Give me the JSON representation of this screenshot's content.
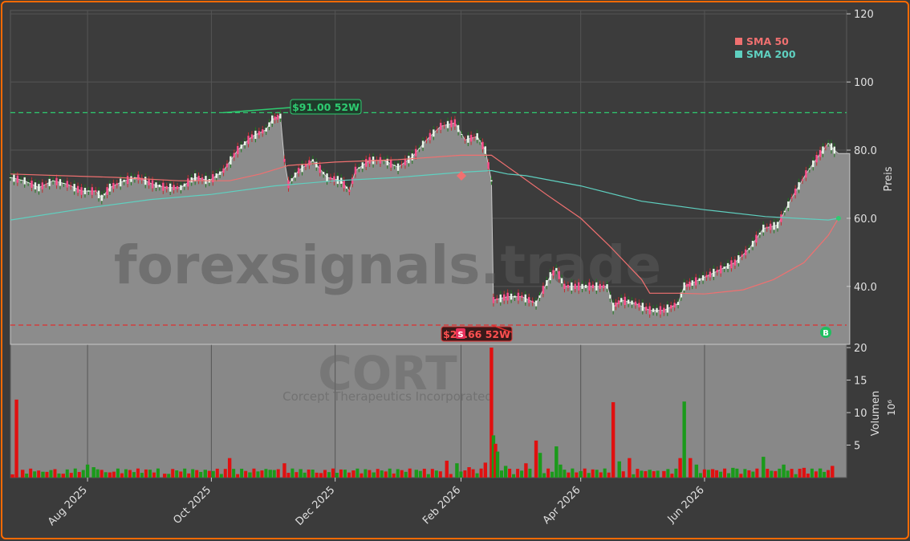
{
  "chart_data": {
    "type": "candlestick",
    "ticker_watermark": "CORT",
    "company_watermark": "Corcept Therapeutics Incorporated",
    "site_watermark": "forexsignals.trade",
    "price_axis_label": "Preis",
    "volume_axis_label": "Volumen",
    "volume_unit": "10⁶",
    "price_ticks": [
      "120",
      "100",
      "80.0",
      "60.0",
      "40.0"
    ],
    "price_tick_values": [
      120,
      100,
      80,
      60,
      40
    ],
    "volume_ticks": [
      "20",
      "15",
      "10",
      "5"
    ],
    "volume_tick_values": [
      20,
      15,
      10,
      5
    ],
    "x_ticks": [
      "Aug 2025",
      "Oct 2025",
      "Dec 2025",
      "Feb 2026",
      "Apr 2026",
      "Jun 2026"
    ],
    "x_tick_dates": [
      "2025-08-01",
      "2025-10-01",
      "2025-12-01",
      "2026-02-01",
      "2026-04-01",
      "2026-06-01"
    ],
    "date_range": [
      "2025-06-24",
      "2026-06-24"
    ],
    "price_ylim": [
      23,
      121
    ],
    "volume_ylim": [
      0,
      20.5
    ],
    "legend": [
      {
        "label": "SMA 50",
        "color": "#f07070"
      },
      {
        "label": "SMA 200",
        "color": "#5fd0c0"
      }
    ],
    "high_52w": {
      "label": "$91.00 52W",
      "value": 91.0,
      "date": "2025-10-06"
    },
    "low_52w": {
      "label": "$28.66 52W",
      "value": 28.66,
      "date": "2026-02-16"
    },
    "signals": [
      {
        "type": "S",
        "date": "2026-01-07",
        "value": 28.5
      },
      {
        "type": "B",
        "date": "2026-06-24",
        "value": 27.5
      }
    ],
    "close_series": [
      [
        "2025-06-24",
        72
      ],
      [
        "2025-07-01",
        71
      ],
      [
        "2025-07-08",
        69
      ],
      [
        "2025-07-15",
        71
      ],
      [
        "2025-07-22",
        70
      ],
      [
        "2025-07-29",
        68
      ],
      [
        "2025-08-05",
        68
      ],
      [
        "2025-08-08",
        66
      ],
      [
        "2025-08-12",
        69
      ],
      [
        "2025-08-19",
        71
      ],
      [
        "2025-08-26",
        72
      ],
      [
        "2025-09-02",
        70
      ],
      [
        "2025-09-09",
        69
      ],
      [
        "2025-09-16",
        69
      ],
      [
        "2025-09-23",
        72
      ],
      [
        "2025-09-30",
        71
      ],
      [
        "2025-10-07",
        74
      ],
      [
        "2025-10-14",
        80
      ],
      [
        "2025-10-21",
        84
      ],
      [
        "2025-10-28",
        86
      ],
      [
        "2025-10-31",
        89
      ],
      [
        "2025-11-04",
        90
      ],
      [
        "2025-11-06",
        77
      ],
      [
        "2025-11-08",
        70
      ],
      [
        "2025-11-13",
        74
      ],
      [
        "2025-11-20",
        77
      ],
      [
        "2025-11-27",
        72
      ],
      [
        "2025-12-04",
        71
      ],
      [
        "2025-12-08",
        68
      ],
      [
        "2025-12-11",
        74
      ],
      [
        "2025-12-18",
        77
      ],
      [
        "2025-12-25",
        77
      ],
      [
        "2026-01-01",
        75
      ],
      [
        "2026-01-08",
        78
      ],
      [
        "2026-01-15",
        83
      ],
      [
        "2026-01-22",
        87
      ],
      [
        "2026-01-29",
        88
      ],
      [
        "2026-02-03",
        83
      ],
      [
        "2026-02-09",
        84
      ],
      [
        "2026-02-13",
        80
      ],
      [
        "2026-02-16",
        71
      ],
      [
        "2026-02-17",
        36
      ],
      [
        "2026-02-24",
        37
      ],
      [
        "2026-03-03",
        37
      ],
      [
        "2026-03-10",
        35
      ],
      [
        "2026-03-17",
        43
      ],
      [
        "2026-03-20",
        45
      ],
      [
        "2026-03-24",
        40
      ],
      [
        "2026-03-31",
        40
      ],
      [
        "2026-04-07",
        40
      ],
      [
        "2026-04-14",
        40
      ],
      [
        "2026-04-17",
        34
      ],
      [
        "2026-04-21",
        36
      ],
      [
        "2026-04-28",
        35
      ],
      [
        "2026-05-05",
        33
      ],
      [
        "2026-05-12",
        33
      ],
      [
        "2026-05-19",
        35
      ],
      [
        "2026-05-22",
        40
      ],
      [
        "2026-05-26",
        41
      ],
      [
        "2026-06-02",
        43
      ],
      [
        "2026-06-09",
        45
      ],
      [
        "2026-06-16",
        47
      ],
      [
        "2026-06-23",
        51
      ],
      [
        "2026-06-30",
        57
      ],
      [
        "2026-07-07",
        58
      ],
      [
        "2026-07-14",
        66
      ],
      [
        "2026-07-21",
        73
      ],
      [
        "2026-07-28",
        79
      ],
      [
        "2026-08-01",
        82
      ],
      [
        "2026-08-04",
        80
      ],
      [
        "2026-08-06",
        79
      ]
    ],
    "sma50": [
      [
        "2025-06-24",
        73
      ],
      [
        "2025-08-15",
        72
      ],
      [
        "2025-09-15",
        71
      ],
      [
        "2025-10-10",
        71
      ],
      [
        "2025-10-25",
        73
      ],
      [
        "2025-11-08",
        75.5
      ],
      [
        "2025-12-01",
        76.5
      ],
      [
        "2026-01-01",
        77.2
      ],
      [
        "2026-02-01",
        78.5
      ],
      [
        "2026-02-16",
        78.5
      ],
      [
        "2026-03-01",
        73
      ],
      [
        "2026-03-15",
        67
      ],
      [
        "2026-04-01",
        60
      ],
      [
        "2026-04-15",
        52
      ],
      [
        "2026-05-01",
        42
      ],
      [
        "2026-05-05",
        38
      ],
      [
        "2026-05-20",
        38
      ],
      [
        "2026-06-01",
        37.8
      ],
      [
        "2026-06-20",
        39
      ],
      [
        "2026-07-05",
        42
      ],
      [
        "2026-07-20",
        47
      ],
      [
        "2026-08-01",
        55
      ],
      [
        "2026-08-06",
        60
      ]
    ],
    "sma200": [
      [
        "2025-06-24",
        59.5
      ],
      [
        "2025-08-01",
        63
      ],
      [
        "2025-09-01",
        65.5
      ],
      [
        "2025-10-01",
        67
      ],
      [
        "2025-11-01",
        69.5
      ],
      [
        "2025-12-01",
        71
      ],
      [
        "2026-01-01",
        72
      ],
      [
        "2026-02-01",
        73.5
      ],
      [
        "2026-02-16",
        74
      ],
      [
        "2026-02-24",
        73
      ],
      [
        "2026-03-05",
        72.5
      ],
      [
        "2026-04-01",
        69.5
      ],
      [
        "2026-05-01",
        65
      ],
      [
        "2026-06-01",
        62.5
      ],
      [
        "2026-07-01",
        60.5
      ],
      [
        "2026-08-01",
        59.5
      ],
      [
        "2026-08-06",
        60
      ]
    ],
    "volume_bars": [
      [
        "2025-06-25",
        0.5,
        "down"
      ],
      [
        "2025-06-27",
        12,
        "down"
      ],
      [
        "2025-06-30",
        1.2,
        "down"
      ],
      [
        "2025-07-10",
        0.9,
        "up"
      ],
      [
        "2025-07-20",
        0.6,
        "down"
      ],
      [
        "2025-08-01",
        2,
        "up"
      ],
      [
        "2025-08-04",
        1.6,
        "up"
      ],
      [
        "2025-08-12",
        0.8,
        "down"
      ],
      [
        "2025-09-08",
        0.6,
        "down"
      ],
      [
        "2025-09-28",
        1.2,
        "up"
      ],
      [
        "2025-10-10",
        3,
        "down"
      ],
      [
        "2025-10-20",
        0.8,
        "up"
      ],
      [
        "2025-10-30",
        1.2,
        "up"
      ],
      [
        "2025-11-06",
        2.2,
        "down"
      ],
      [
        "2025-11-14",
        1.3,
        "up"
      ],
      [
        "2025-11-24",
        0.7,
        "down"
      ],
      [
        "2025-12-10",
        1.1,
        "down"
      ],
      [
        "2025-12-20",
        0.8,
        "up"
      ],
      [
        "2026-01-10",
        1.2,
        "up"
      ],
      [
        "2026-01-25",
        2.6,
        "down"
      ],
      [
        "2026-01-30",
        2.2,
        "up"
      ],
      [
        "2026-02-05",
        1.6,
        "down"
      ],
      [
        "2026-02-13",
        2.3,
        "down"
      ],
      [
        "2026-02-16",
        20,
        "down"
      ],
      [
        "2026-02-17",
        6.5,
        "up"
      ],
      [
        "2026-02-18",
        5.2,
        "down"
      ],
      [
        "2026-02-19",
        4,
        "up"
      ],
      [
        "2026-02-23",
        1.8,
        "up"
      ],
      [
        "2026-03-05",
        2.2,
        "down"
      ],
      [
        "2026-03-10",
        5.7,
        "down"
      ],
      [
        "2026-03-12",
        3.8,
        "up"
      ],
      [
        "2026-03-20",
        4.8,
        "up"
      ],
      [
        "2026-03-22",
        2,
        "up"
      ],
      [
        "2026-04-01",
        1,
        "up"
      ],
      [
        "2026-04-17",
        11.6,
        "down"
      ],
      [
        "2026-04-20",
        2.5,
        "up"
      ],
      [
        "2026-04-25",
        3,
        "down"
      ],
      [
        "2026-05-05",
        1.2,
        "up"
      ],
      [
        "2026-05-12",
        1,
        "down"
      ],
      [
        "2026-05-20",
        3,
        "down"
      ],
      [
        "2026-05-22",
        11.7,
        "up"
      ],
      [
        "2026-05-25",
        3,
        "down"
      ],
      [
        "2026-05-28",
        2,
        "up"
      ],
      [
        "2026-06-05",
        1.3,
        "down"
      ],
      [
        "2026-06-15",
        1.5,
        "up"
      ],
      [
        "2026-06-30",
        3.2,
        "up"
      ],
      [
        "2026-07-10",
        2,
        "up"
      ],
      [
        "2026-07-20",
        1.5,
        "down"
      ],
      [
        "2026-07-28",
        1.4,
        "up"
      ],
      [
        "2026-08-03",
        1.8,
        "down"
      ]
    ]
  }
}
